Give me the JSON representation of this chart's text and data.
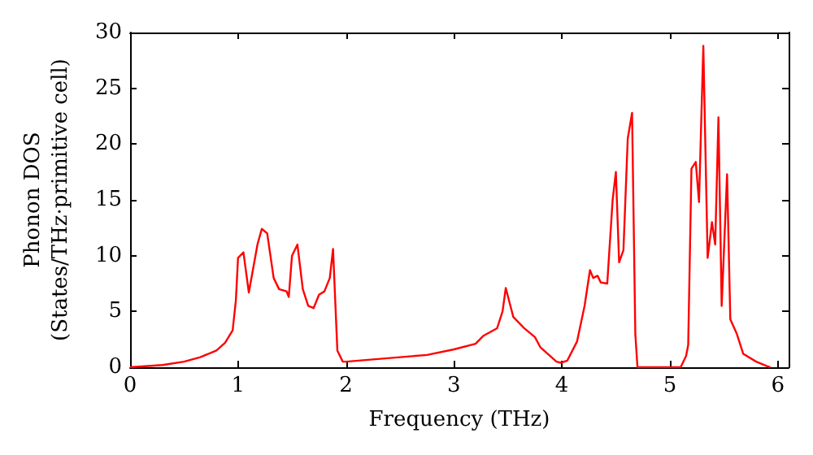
{
  "chart_data": {
    "type": "line",
    "xlabel": "Frequency (THz)",
    "ylabel": "Phonon DOS\n(States/THz·primitive cell)",
    "xlim": [
      0,
      6.1
    ],
    "xticks": [
      0,
      1,
      2,
      3,
      4,
      5,
      6
    ],
    "ylim": [
      0,
      30
    ],
    "yticks": [
      0,
      5,
      10,
      15,
      20,
      25,
      30
    ],
    "grid": false,
    "marker": "none",
    "line_style": "solid",
    "series": [
      {
        "color": "#ff0000",
        "x": [
          0,
          0.3,
          0.5,
          0.65,
          0.8,
          0.88,
          0.95,
          0.98,
          1.0,
          1.05,
          1.1,
          1.18,
          1.22,
          1.27,
          1.33,
          1.38,
          1.45,
          1.47,
          1.5,
          1.55,
          1.6,
          1.65,
          1.7,
          1.75,
          1.8,
          1.85,
          1.88,
          1.92,
          1.97,
          2.0,
          2.5,
          2.75,
          3.0,
          3.2,
          3.27,
          3.4,
          3.45,
          3.48,
          3.55,
          3.65,
          3.75,
          3.8,
          3.95,
          3.99,
          4.05,
          4.14,
          4.21,
          4.26,
          4.29,
          4.33,
          4.36,
          4.42,
          4.47,
          4.5,
          4.53,
          4.57,
          4.61,
          4.65,
          4.68,
          4.7,
          5.1,
          5.15,
          5.17,
          5.2,
          5.24,
          5.27,
          5.31,
          5.35,
          5.39,
          5.42,
          5.45,
          5.48,
          5.53,
          5.56,
          5.62,
          5.68,
          5.8,
          5.9,
          5.93
        ],
        "values": [
          0,
          0.2,
          0.5,
          0.9,
          1.5,
          2.2,
          3.3,
          6,
          9.8,
          10.3,
          6.7,
          11,
          12.4,
          12,
          8,
          7,
          6.8,
          6.3,
          10,
          11,
          7,
          5.5,
          5.3,
          6.5,
          6.8,
          8,
          10.6,
          1.5,
          0.5,
          0.5,
          0.9,
          1.1,
          1.6,
          2.1,
          2.8,
          3.5,
          5,
          7.1,
          4.5,
          3.5,
          2.7,
          1.8,
          0.5,
          0.4,
          0.6,
          2.3,
          5.5,
          8.7,
          8,
          8.2,
          7.6,
          7.5,
          15,
          17.5,
          9.4,
          10.5,
          20.5,
          22.8,
          3,
          0,
          0,
          1,
          2,
          17.8,
          18.4,
          14.8,
          28.8,
          9.8,
          13,
          11,
          22.4,
          5.5,
          17.3,
          4.3,
          3,
          1.2,
          0.5,
          0.1,
          0
        ]
      }
    ]
  }
}
